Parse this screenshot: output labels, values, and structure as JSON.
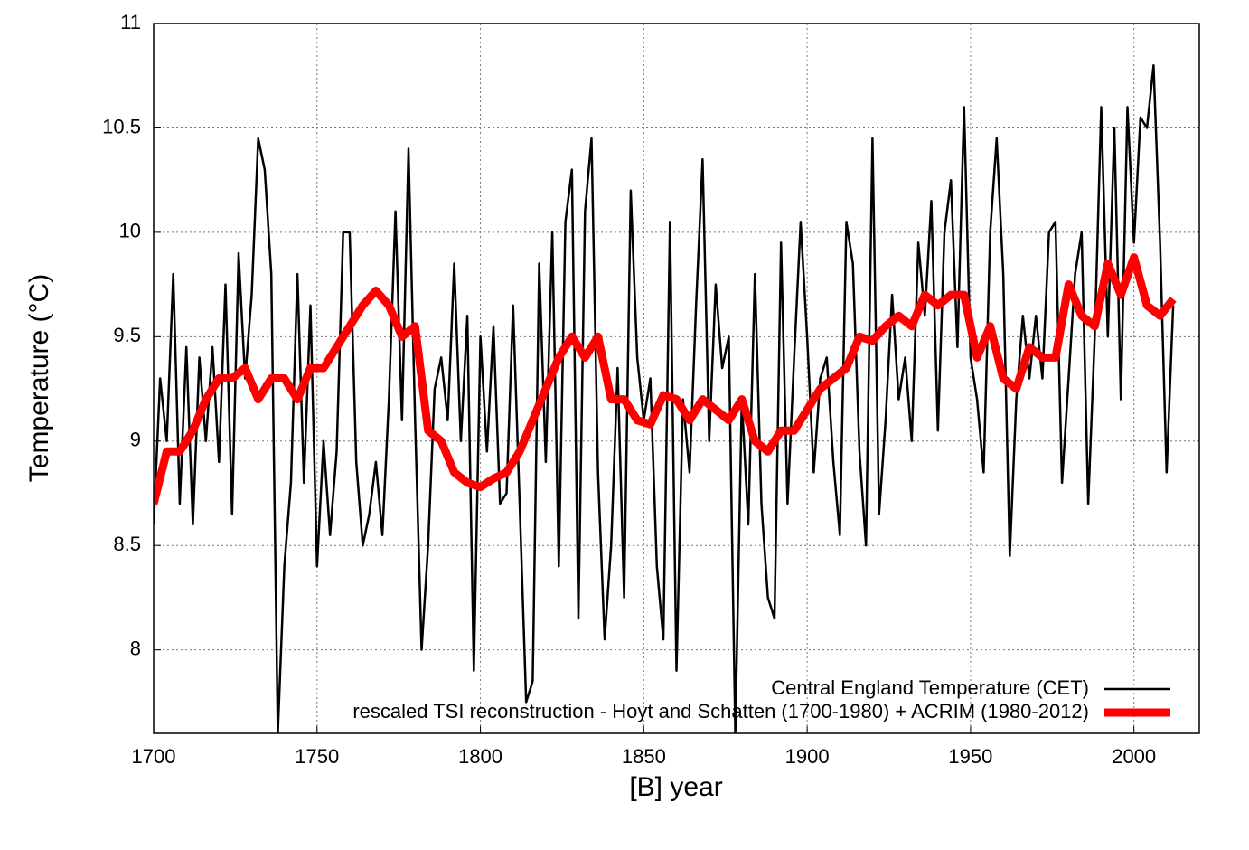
{
  "chart_data": {
    "type": "line",
    "xlabel": "[B]   year",
    "ylabel": "Temperature (°C)",
    "xlim": [
      1700,
      2020
    ],
    "ylim": [
      7.6,
      11
    ],
    "xticks": [
      1700,
      1750,
      1800,
      1850,
      1900,
      1950,
      2000
    ],
    "yticks": [
      8,
      8.5,
      9,
      9.5,
      10,
      10.5,
      11
    ],
    "grid": true,
    "legend": "lower right",
    "series": [
      {
        "name": "Central England Temperature (CET)",
        "color": "#000000",
        "x": [
          1700,
          1702,
          1704,
          1706,
          1708,
          1710,
          1712,
          1714,
          1716,
          1718,
          1720,
          1722,
          1724,
          1726,
          1728,
          1730,
          1732,
          1734,
          1736,
          1738,
          1740,
          1742,
          1744,
          1746,
          1748,
          1750,
          1752,
          1754,
          1756,
          1758,
          1760,
          1762,
          1764,
          1766,
          1768,
          1770,
          1772,
          1774,
          1776,
          1778,
          1780,
          1782,
          1784,
          1786,
          1788,
          1790,
          1792,
          1794,
          1796,
          1798,
          1800,
          1802,
          1804,
          1806,
          1808,
          1810,
          1812,
          1814,
          1816,
          1818,
          1820,
          1822,
          1824,
          1826,
          1828,
          1830,
          1832,
          1834,
          1836,
          1838,
          1840,
          1842,
          1844,
          1846,
          1848,
          1850,
          1852,
          1854,
          1856,
          1858,
          1860,
          1862,
          1864,
          1866,
          1868,
          1870,
          1872,
          1874,
          1876,
          1878,
          1880,
          1882,
          1884,
          1886,
          1888,
          1890,
          1892,
          1894,
          1896,
          1898,
          1900,
          1902,
          1904,
          1906,
          1908,
          1910,
          1912,
          1914,
          1916,
          1918,
          1920,
          1922,
          1924,
          1926,
          1928,
          1930,
          1932,
          1934,
          1936,
          1938,
          1940,
          1942,
          1944,
          1946,
          1948,
          1950,
          1952,
          1954,
          1956,
          1958,
          1960,
          1962,
          1964,
          1966,
          1968,
          1970,
          1972,
          1974,
          1976,
          1978,
          1980,
          1982,
          1984,
          1986,
          1988,
          1990,
          1992,
          1994,
          1996,
          1998,
          2000,
          2002,
          2004,
          2006,
          2008,
          2010,
          2012
        ],
        "values": [
          8.6,
          9.3,
          9.0,
          9.8,
          8.7,
          9.45,
          8.6,
          9.4,
          9.0,
          9.45,
          8.9,
          9.75,
          8.65,
          9.9,
          9.3,
          9.7,
          10.45,
          10.3,
          9.8,
          7.6,
          8.4,
          8.8,
          9.8,
          8.8,
          9.65,
          8.4,
          9.0,
          8.55,
          8.95,
          10.0,
          10.0,
          8.9,
          8.5,
          8.65,
          8.9,
          8.55,
          9.2,
          10.1,
          9.1,
          10.4,
          9.1,
          8.0,
          8.5,
          9.25,
          9.4,
          9.1,
          9.85,
          9.0,
          9.6,
          7.9,
          9.5,
          8.95,
          9.55,
          8.7,
          8.75,
          9.65,
          8.7,
          7.75,
          7.85,
          9.85,
          8.9,
          10.0,
          8.4,
          10.05,
          10.3,
          8.15,
          10.1,
          10.45,
          8.85,
          8.05,
          8.5,
          9.35,
          8.25,
          10.2,
          9.4,
          9.1,
          9.3,
          8.4,
          8.05,
          10.05,
          7.9,
          9.2,
          8.85,
          9.65,
          10.35,
          9.0,
          9.75,
          9.35,
          9.5,
          7.6,
          9.2,
          8.6,
          9.8,
          8.7,
          8.25,
          8.15,
          9.95,
          8.7,
          9.4,
          10.05,
          9.5,
          8.85,
          9.3,
          9.4,
          8.9,
          8.55,
          10.05,
          9.85,
          8.95,
          8.5,
          10.45,
          8.65,
          9.1,
          9.7,
          9.2,
          9.4,
          9.0,
          9.95,
          9.6,
          10.15,
          9.05,
          10.0,
          10.25,
          9.45,
          10.6,
          9.4,
          9.2,
          8.85,
          10.0,
          10.45,
          9.8,
          8.45,
          9.2,
          9.6,
          9.3,
          9.6,
          9.3,
          10.0,
          10.05,
          8.8,
          9.3,
          9.8,
          10.0,
          8.7,
          9.5,
          10.6,
          9.5,
          10.5,
          9.2,
          10.6,
          9.95,
          10.55,
          10.5,
          10.8,
          9.95,
          8.85,
          9.65
        ]
      },
      {
        "name": "rescaled TSI reconstruction - Hoyt and Schatten (1700-1980) + ACRIM (1980-2012)",
        "color": "#ff0000",
        "x": [
          1700,
          1704,
          1708,
          1712,
          1716,
          1720,
          1724,
          1728,
          1732,
          1736,
          1740,
          1744,
          1748,
          1752,
          1756,
          1760,
          1764,
          1768,
          1772,
          1776,
          1780,
          1784,
          1788,
          1792,
          1796,
          1800,
          1804,
          1808,
          1812,
          1816,
          1820,
          1824,
          1828,
          1832,
          1836,
          1840,
          1844,
          1848,
          1852,
          1856,
          1860,
          1864,
          1868,
          1872,
          1876,
          1880,
          1884,
          1888,
          1892,
          1896,
          1900,
          1904,
          1908,
          1912,
          1916,
          1920,
          1924,
          1928,
          1932,
          1936,
          1940,
          1944,
          1948,
          1952,
          1956,
          1960,
          1964,
          1968,
          1972,
          1976,
          1980,
          1984,
          1988,
          1992,
          1996,
          2000,
          2004,
          2008,
          2012
        ],
        "values": [
          8.7,
          8.95,
          8.95,
          9.05,
          9.2,
          9.3,
          9.3,
          9.35,
          9.2,
          9.3,
          9.3,
          9.2,
          9.35,
          9.35,
          9.45,
          9.55,
          9.65,
          9.72,
          9.65,
          9.5,
          9.55,
          9.05,
          9.0,
          8.85,
          8.8,
          8.78,
          8.82,
          8.85,
          8.95,
          9.1,
          9.25,
          9.4,
          9.5,
          9.4,
          9.5,
          9.2,
          9.2,
          9.1,
          9.08,
          9.22,
          9.2,
          9.1,
          9.2,
          9.15,
          9.1,
          9.2,
          9.0,
          8.95,
          9.05,
          9.05,
          9.15,
          9.25,
          9.3,
          9.35,
          9.5,
          9.48,
          9.55,
          9.6,
          9.55,
          9.7,
          9.65,
          9.7,
          9.7,
          9.4,
          9.55,
          9.3,
          9.25,
          9.45,
          9.4,
          9.4,
          9.75,
          9.6,
          9.55,
          9.85,
          9.7,
          9.88,
          9.65,
          9.6,
          9.68
        ]
      }
    ]
  }
}
